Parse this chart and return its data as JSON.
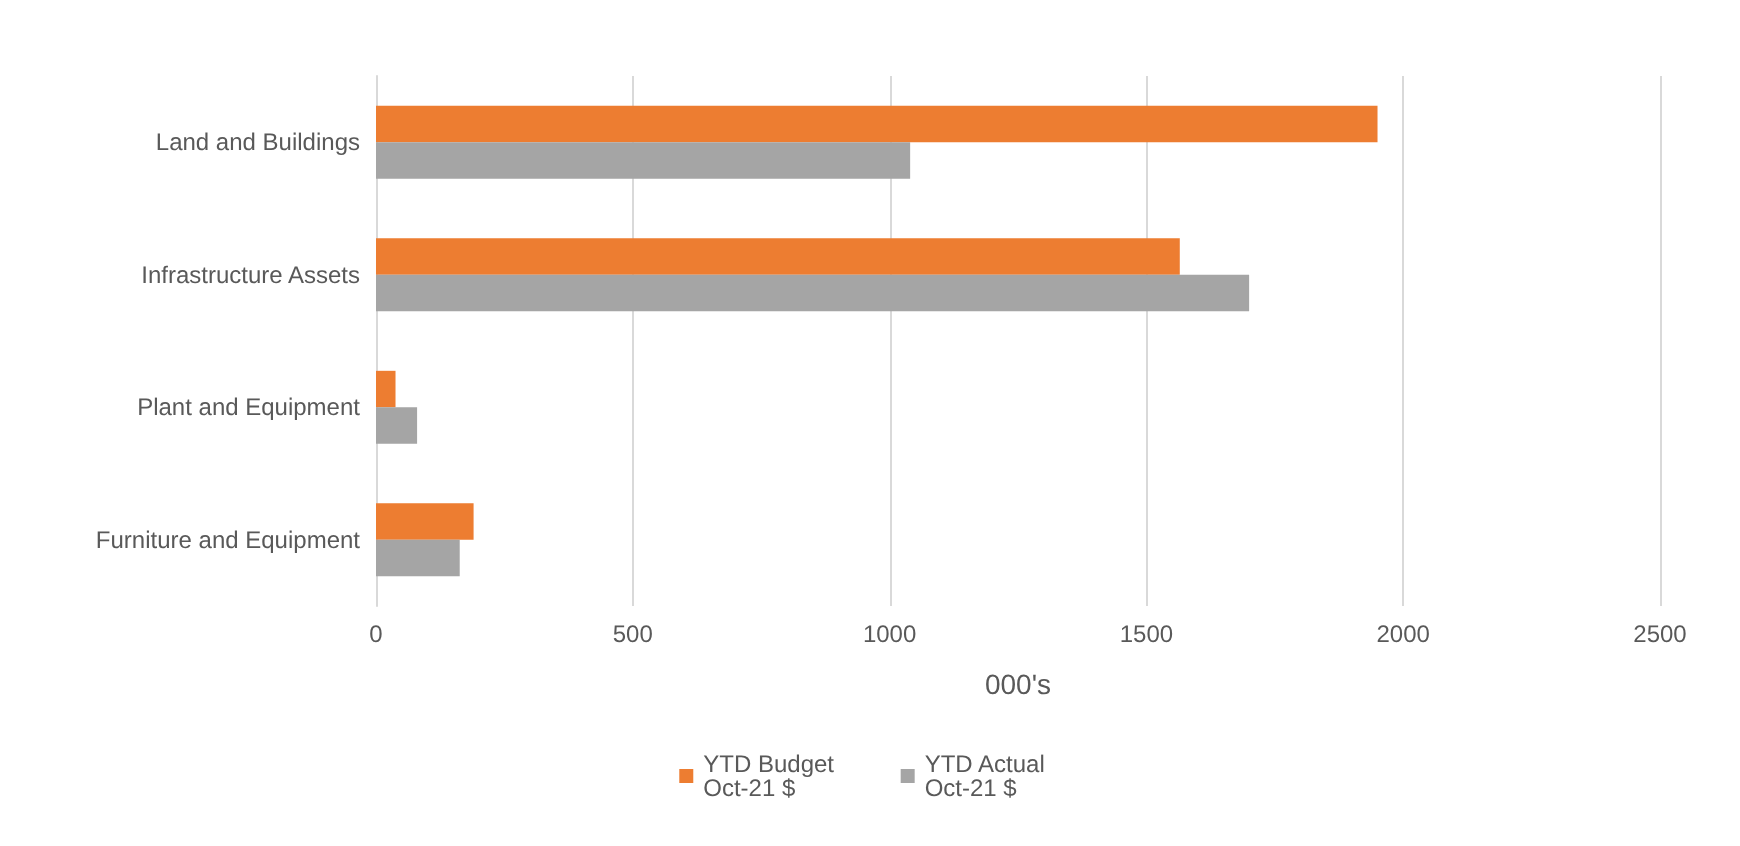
{
  "chart_data": {
    "type": "bar",
    "orientation": "horizontal",
    "xlabel": "000's",
    "categories": [
      "Land and Buildings",
      "Infrastructure Assets",
      "Plant and Equipment",
      "Furniture and Equipment"
    ],
    "series": [
      {
        "name": "YTD Budget Oct-21 $",
        "color": "#ed7d31",
        "values": [
          1950,
          1565,
          38,
          190
        ]
      },
      {
        "name": "YTD Actual Oct-21 $",
        "color": "#a5a5a5",
        "values": [
          1040,
          1700,
          80,
          163
        ]
      }
    ],
    "xlim": [
      0,
      2500
    ],
    "xticks": [
      0,
      500,
      1000,
      1500,
      2000,
      2500
    ],
    "grid": "x",
    "legend": "bottom"
  }
}
